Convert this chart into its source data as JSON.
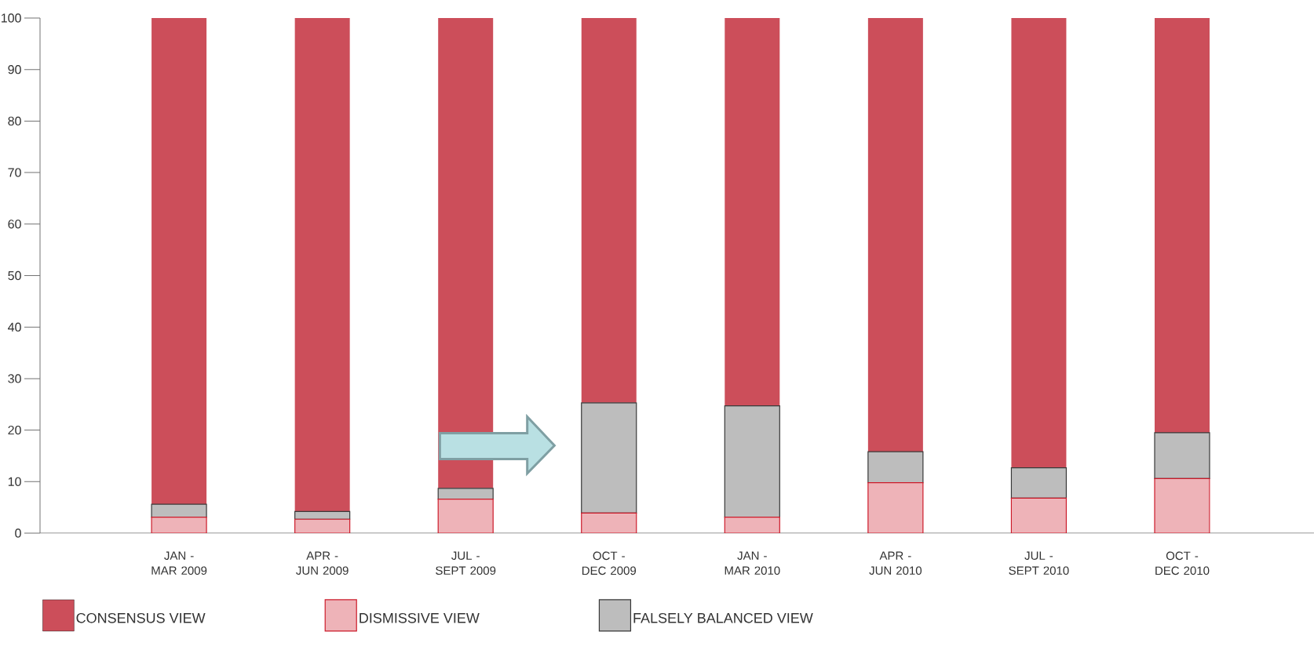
{
  "chart_data": {
    "type": "bar",
    "stacked": true,
    "categories": [
      "JAN - MAR 2009",
      "APR - JUN 2009",
      "JUL - SEPT 2009",
      "OCT - DEC 2009",
      "JAN - MAR 2010",
      "APR - JUN 2010",
      "JUL - SEPT 2010",
      "OCT - DEC 2010"
    ],
    "series": [
      {
        "name": "DISMISSIVE VIEW",
        "color": "#eeb3b8",
        "values": [
          3.1,
          2.7,
          6.6,
          3.9,
          3.1,
          9.8,
          6.8,
          10.6
        ]
      },
      {
        "name": "FALSELY BALANCED VIEW",
        "color": "#bdbdbd",
        "values": [
          2.5,
          1.5,
          2.1,
          21.4,
          21.6,
          6.0,
          5.9,
          8.9
        ]
      },
      {
        "name": "CONSENSUS VIEW",
        "color": "#cc4e5a",
        "values": [
          94.4,
          95.8,
          91.3,
          74.7,
          75.3,
          84.2,
          87.3,
          80.5
        ]
      }
    ],
    "ylim": [
      0,
      100
    ],
    "yticks": [
      0,
      10,
      20,
      30,
      40,
      50,
      60,
      70,
      80,
      90,
      100
    ],
    "grid": false,
    "legend": "bottom"
  }
}
